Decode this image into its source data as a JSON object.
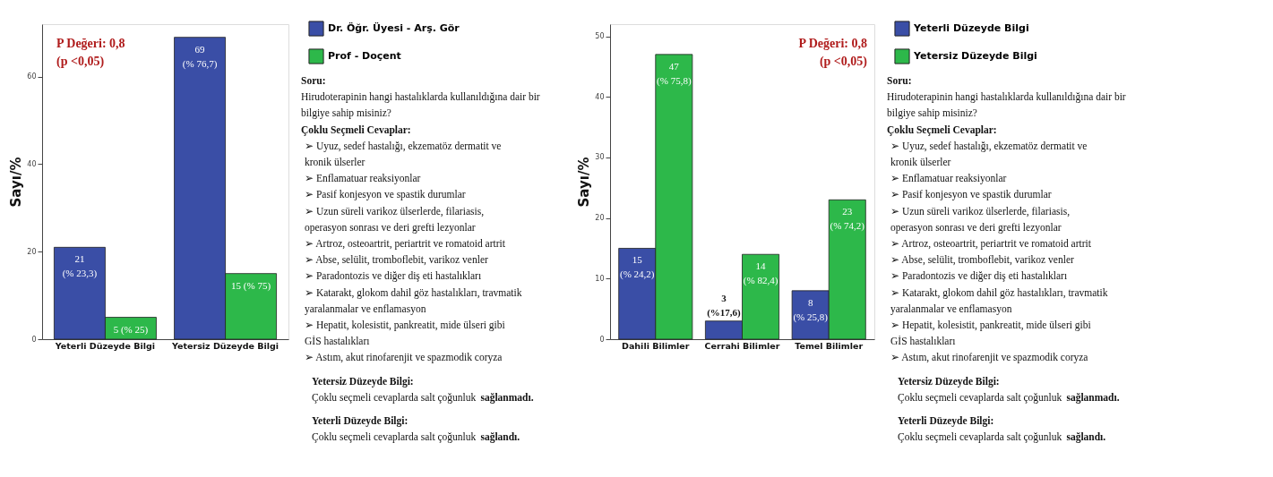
{
  "chart_data": [
    {
      "type": "bar",
      "ylabel": "Sayı/%",
      "categories": [
        "Yeterli Düzeyde Bilgi",
        "Yetersiz Düzeyde Bilgi"
      ],
      "series": [
        {
          "name": "Dr. Öğr. Üyesi - Arş. Gör",
          "color": "#3a4ea6",
          "values": [
            21,
            69
          ],
          "value_labels": [
            "21\n(% 23,3)",
            "69\n(% 76,7)"
          ]
        },
        {
          "name": "Prof - Doçent",
          "color": "#2db84a",
          "values": [
            5,
            15
          ],
          "value_labels": [
            "5 (% 25)",
            "15 (% 75)"
          ]
        }
      ],
      "ylim": [
        0,
        72
      ],
      "yticks": [
        0,
        20,
        40,
        60
      ],
      "grid": false,
      "legend": "right",
      "annotations": [
        "P Değeri: 0,8",
        "(p <0,05)",
        "Soru:",
        "Hirudoterapinin hangi hastalıklarda kullanıldığına dair bir bilgiye sahip misiniz?",
        "Çoklu Seçmeli Cevaplar:",
        "➢ Uyuz, sedef hastalığı, ekzematöz dermatit ve kronik ülserler",
        "➢ Enflamatuar reaksiyonlar",
        "➢ Pasif konjesyon ve spastik durumlar",
        "➢ Uzun süreli varikoz ülserlerde, filariasis, operasyon sonrası ve deri grefti lezyonlar",
        "➢ Artroz, osteoartrit, periartrit ve romatoid artrit",
        "➢ Abse, selülit, tromboflebit, varikoz venler",
        "➢ Paradontozis ve diğer diş eti hastalıkları",
        "➢ Katarakt, glokom dahil göz hastalıkları, travmatik yaralanmalar ve enflamasyon",
        "➢ Hepatit, kolesistit, pankreatit, mide ülseri gibi GİS hastalıkları",
        "➢ Astım, akut rinofarenjit ve spazmodik coryza",
        "Yetersiz Düzeyde Bilgi:",
        "Çoklu seçmeli cevaplarda salt çoğunluk",
        "sağlanmadı.",
        "Yeterli Düzeyde Bilgi:",
        "Çoklu seçmeli cevaplarda salt çoğunluk",
        "sağlandı."
      ]
    },
    {
      "type": "bar",
      "ylabel": "Sayı/%",
      "categories": [
        "Dahili Bilimler",
        "Cerrahi Bilimler",
        "Temel Bilimler"
      ],
      "series": [
        {
          "name": "Yeterli Düzeyde Bilgi",
          "color": "#3a4ea6",
          "values": [
            15,
            3,
            8
          ],
          "value_labels": [
            "15\n(% 24,2)",
            "3\n(%17,6)",
            "8\n(% 25,8)"
          ]
        },
        {
          "name": "Yetersiz Düzeyde Bilgi",
          "color": "#2db84a",
          "values": [
            47,
            14,
            23
          ],
          "value_labels": [
            "47\n(% 75,8)",
            "14\n(% 82,4)",
            "23\n(% 74,2)"
          ]
        }
      ],
      "ylim": [
        0,
        52
      ],
      "yticks": [
        0,
        10,
        20,
        30,
        40,
        50
      ],
      "grid": false,
      "legend": "right",
      "annotations": [
        "P Değeri: 0,8",
        "(p <0,05)",
        "Soru:",
        "Hirudoterapinin hangi hastalıklarda kullanıldığına dair bir bilgiye sahip misiniz?",
        "Çoklu Seçmeli Cevaplar:",
        "➢ Uyuz, sedef hastalığı, ekzematöz dermatit ve kronik ülserler",
        "➢ Enflamatuar reaksiyonlar",
        "➢ Pasif konjesyon ve spastik durumlar",
        "➢ Uzun süreli varikoz ülserlerde, filariasis, operasyon sonrası ve deri grefti lezyonlar",
        "➢ Artroz, osteoartrit, periartrit ve romatoid artrit",
        "➢ Abse, selülit, tromboflebit, varikoz venler",
        "➢ Paradontozis ve diğer diş eti hastalıkları",
        "➢ Katarakt, glokom dahil göz hastalıkları, travmatik yaralanmalar ve enflamasyon",
        "➢ Hepatit, kolesistit, pankreatit, mide ülseri gibi GİS hastalıkları",
        "➢ Astım, akut rinofarenjit ve spazmodik coryza",
        "Yetersiz Düzeyde Bilgi:",
        "Çoklu seçmeli cevaplarda salt çoğunluk",
        "sağlanmadı.",
        "Yeterli Düzeyde Bilgi:",
        "Çoklu seçmeli cevaplarda salt çoğunluk",
        "sağlandı."
      ]
    }
  ]
}
